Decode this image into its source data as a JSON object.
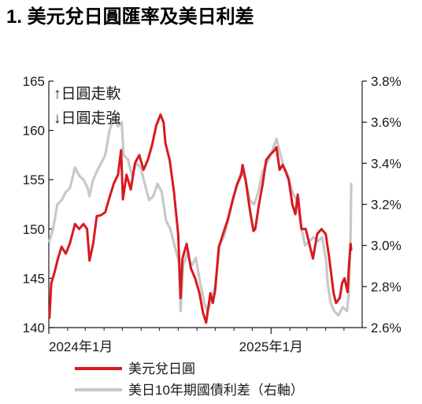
{
  "chart_data": {
    "type": "line",
    "title": "1. 美元兌日圓匯率及美日利差",
    "annotations": [
      "↑日圓走軟",
      "↓日圓走強"
    ],
    "x_tick_labels": [
      "2024年1月",
      "2025年1月"
    ],
    "x_range": [
      "2024-01",
      "2025-04"
    ],
    "y_left": {
      "range": [
        140,
        165
      ],
      "ticks": [
        140,
        145,
        150,
        155,
        160,
        165
      ]
    },
    "y_right": {
      "range": [
        2.6,
        3.8
      ],
      "ticks": [
        "2.6%",
        "2.8%",
        "3.0%",
        "3.2%",
        "3.4%",
        "3.6%",
        "3.8%"
      ],
      "tick_values": [
        2.6,
        2.8,
        3.0,
        3.2,
        3.4,
        3.6,
        3.8
      ]
    },
    "legend_placement": "bottom",
    "grid": false,
    "series": [
      {
        "name": "美元兌日圓",
        "axis": "left",
        "color": "#d71920",
        "points": [
          [
            "2024-01-02",
            141.0
          ],
          [
            "2024-01-05",
            144.5
          ],
          [
            "2024-01-10",
            145.5
          ],
          [
            "2024-01-16",
            147.0
          ],
          [
            "2024-01-22",
            148.2
          ],
          [
            "2024-01-29",
            147.5
          ],
          [
            "2024-02-05",
            148.6
          ],
          [
            "2024-02-13",
            150.5
          ],
          [
            "2024-02-20",
            150.0
          ],
          [
            "2024-02-27",
            150.5
          ],
          [
            "2024-03-04",
            150.0
          ],
          [
            "2024-03-08",
            146.8
          ],
          [
            "2024-03-14",
            148.5
          ],
          [
            "2024-03-20",
            151.3
          ],
          [
            "2024-03-27",
            151.4
          ],
          [
            "2024-04-03",
            151.7
          ],
          [
            "2024-04-10",
            153.2
          ],
          [
            "2024-04-17",
            154.6
          ],
          [
            "2024-04-24",
            155.5
          ],
          [
            "2024-04-29",
            158.0
          ],
          [
            "2024-05-02",
            153.0
          ],
          [
            "2024-05-08",
            155.5
          ],
          [
            "2024-05-15",
            154.0
          ],
          [
            "2024-05-22",
            156.7
          ],
          [
            "2024-05-29",
            157.5
          ],
          [
            "2024-06-05",
            156.0
          ],
          [
            "2024-06-12",
            157.0
          ],
          [
            "2024-06-19",
            158.5
          ],
          [
            "2024-06-26",
            160.5
          ],
          [
            "2024-07-03",
            161.6
          ],
          [
            "2024-07-08",
            160.8
          ],
          [
            "2024-07-11",
            158.7
          ],
          [
            "2024-07-18",
            157.0
          ],
          [
            "2024-07-25",
            153.8
          ],
          [
            "2024-08-01",
            149.5
          ],
          [
            "2024-08-05",
            143.0
          ],
          [
            "2024-08-08",
            147.0
          ],
          [
            "2024-08-15",
            148.5
          ],
          [
            "2024-08-22",
            146.0
          ],
          [
            "2024-08-29",
            145.0
          ],
          [
            "2024-09-05",
            143.5
          ],
          [
            "2024-09-11",
            141.5
          ],
          [
            "2024-09-16",
            140.5
          ],
          [
            "2024-09-23",
            143.5
          ],
          [
            "2024-09-27",
            142.5
          ],
          [
            "2024-10-01",
            143.8
          ],
          [
            "2024-10-07",
            148.2
          ],
          [
            "2024-10-15",
            149.7
          ],
          [
            "2024-10-22",
            151.0
          ],
          [
            "2024-10-30",
            153.0
          ],
          [
            "2024-11-06",
            154.5
          ],
          [
            "2024-11-13",
            155.5
          ],
          [
            "2024-11-15",
            156.5
          ],
          [
            "2024-11-20",
            155.0
          ],
          [
            "2024-11-27",
            152.0
          ],
          [
            "2024-12-03",
            149.8
          ],
          [
            "2024-12-06",
            150.0
          ],
          [
            "2024-12-12",
            152.5
          ],
          [
            "2024-12-18",
            154.5
          ],
          [
            "2024-12-24",
            157.0
          ],
          [
            "2024-12-30",
            157.5
          ],
          [
            "2025-01-07",
            158.0
          ],
          [
            "2025-01-10",
            158.3
          ],
          [
            "2025-01-15",
            156.0
          ],
          [
            "2025-01-20",
            156.5
          ],
          [
            "2025-01-24",
            156.0
          ],
          [
            "2025-01-30",
            155.0
          ],
          [
            "2025-02-05",
            152.5
          ],
          [
            "2025-02-10",
            151.5
          ],
          [
            "2025-02-14",
            153.5
          ],
          [
            "2025-02-20",
            150.0
          ],
          [
            "2025-02-27",
            150.0
          ],
          [
            "2025-03-05",
            148.5
          ],
          [
            "2025-03-11",
            147.0
          ],
          [
            "2025-03-18",
            149.5
          ],
          [
            "2025-03-25",
            150.0
          ],
          [
            "2025-04-01",
            149.5
          ],
          [
            "2025-04-07",
            147.0
          ],
          [
            "2025-04-14",
            143.5
          ],
          [
            "2025-04-18",
            142.5
          ],
          [
            "2025-04-24",
            143.0
          ],
          [
            "2025-04-28",
            144.5
          ],
          [
            "2025-05-02",
            145.0
          ],
          [
            "2025-05-07",
            143.6
          ],
          [
            "2025-05-09",
            146.0
          ],
          [
            "2025-05-12",
            148.5
          ],
          [
            "2025-05-13",
            147.9
          ]
        ]
      },
      {
        "name": "美日10年期國債利差（右軸）",
        "axis": "right",
        "color": "#c8c8c8",
        "points": [
          [
            "2024-01-02",
            3.02
          ],
          [
            "2024-01-08",
            3.08
          ],
          [
            "2024-01-15",
            3.2
          ],
          [
            "2024-01-22",
            3.22
          ],
          [
            "2024-01-29",
            3.26
          ],
          [
            "2024-02-05",
            3.28
          ],
          [
            "2024-02-13",
            3.38
          ],
          [
            "2024-02-20",
            3.34
          ],
          [
            "2024-02-27",
            3.32
          ],
          [
            "2024-03-05",
            3.28
          ],
          [
            "2024-03-08",
            3.24
          ],
          [
            "2024-03-14",
            3.32
          ],
          [
            "2024-03-20",
            3.36
          ],
          [
            "2024-03-27",
            3.4
          ],
          [
            "2024-04-03",
            3.44
          ],
          [
            "2024-04-10",
            3.56
          ],
          [
            "2024-04-17",
            3.62
          ],
          [
            "2024-04-24",
            3.58
          ],
          [
            "2024-04-30",
            3.6
          ],
          [
            "2024-05-03",
            3.44
          ],
          [
            "2024-05-10",
            3.42
          ],
          [
            "2024-05-17",
            3.34
          ],
          [
            "2024-05-24",
            3.4
          ],
          [
            "2024-05-31",
            3.38
          ],
          [
            "2024-06-07",
            3.3
          ],
          [
            "2024-06-14",
            3.22
          ],
          [
            "2024-06-21",
            3.24
          ],
          [
            "2024-06-28",
            3.3
          ],
          [
            "2024-07-05",
            3.26
          ],
          [
            "2024-07-12",
            3.12
          ],
          [
            "2024-07-19",
            3.08
          ],
          [
            "2024-07-26",
            3.0
          ],
          [
            "2024-08-02",
            2.92
          ],
          [
            "2024-08-05",
            2.68
          ],
          [
            "2024-08-09",
            2.9
          ],
          [
            "2024-08-16",
            2.96
          ],
          [
            "2024-08-23",
            2.9
          ],
          [
            "2024-08-30",
            2.94
          ],
          [
            "2024-09-06",
            2.82
          ],
          [
            "2024-09-13",
            2.72
          ],
          [
            "2024-09-18",
            2.68
          ],
          [
            "2024-09-25",
            2.74
          ],
          [
            "2024-10-01",
            2.8
          ],
          [
            "2024-10-08",
            3.0
          ],
          [
            "2024-10-15",
            3.04
          ],
          [
            "2024-10-22",
            3.12
          ],
          [
            "2024-10-30",
            3.22
          ],
          [
            "2024-11-06",
            3.3
          ],
          [
            "2024-11-13",
            3.36
          ],
          [
            "2024-11-20",
            3.32
          ],
          [
            "2024-11-27",
            3.22
          ],
          [
            "2024-12-04",
            3.2
          ],
          [
            "2024-12-11",
            3.26
          ],
          [
            "2024-12-18",
            3.36
          ],
          [
            "2024-12-25",
            3.4
          ],
          [
            "2025-01-03",
            3.46
          ],
          [
            "2025-01-10",
            3.52
          ],
          [
            "2025-01-15",
            3.46
          ],
          [
            "2025-01-22",
            3.38
          ],
          [
            "2025-01-29",
            3.34
          ],
          [
            "2025-02-05",
            3.26
          ],
          [
            "2025-02-12",
            3.22
          ],
          [
            "2025-02-19",
            3.1
          ],
          [
            "2025-02-26",
            3.0
          ],
          [
            "2025-03-05",
            3.02
          ],
          [
            "2025-03-12",
            3.04
          ],
          [
            "2025-03-19",
            3.02
          ],
          [
            "2025-03-26",
            3.04
          ],
          [
            "2025-04-02",
            2.92
          ],
          [
            "2025-04-04",
            2.82
          ],
          [
            "2025-04-09",
            2.72
          ],
          [
            "2025-04-15",
            2.68
          ],
          [
            "2025-04-22",
            2.66
          ],
          [
            "2025-04-29",
            2.7
          ],
          [
            "2025-05-06",
            2.68
          ],
          [
            "2025-05-09",
            2.76
          ],
          [
            "2025-05-12",
            3.05
          ],
          [
            "2025-05-13",
            3.3
          ]
        ]
      }
    ]
  }
}
